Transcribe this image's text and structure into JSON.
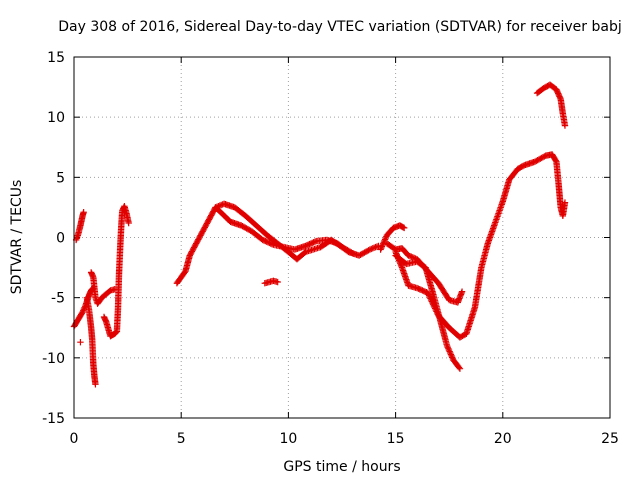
{
  "chart_data": {
    "type": "scatter",
    "title": "Day 308 of 2016, Sidereal Day-to-day VTEC variation (SDTVAR) for receiver babj",
    "xlabel": "GPS time / hours",
    "ylabel": "SDTVAR / TECUs",
    "xlim": [
      0,
      25
    ],
    "ylim": [
      -15,
      15
    ],
    "xticks": [
      0,
      5,
      10,
      15,
      20,
      25
    ],
    "yticks": [
      -15,
      -10,
      -5,
      0,
      5,
      10,
      15
    ],
    "grid": true,
    "marker": "+",
    "series_color": "#e00000",
    "series": [
      {
        "name": "seg-a",
        "points": [
          [
            0,
            -7.4
          ],
          [
            0.2,
            -6.8
          ],
          [
            0.4,
            -6.2
          ],
          [
            0.55,
            -5.6
          ],
          [
            0.7,
            -4.8
          ],
          [
            0.8,
            -4.4
          ],
          [
            0.9,
            -4.2
          ]
        ]
      },
      {
        "name": "seg-b",
        "points": [
          [
            0.1,
            -0.2
          ],
          [
            0.2,
            0.3
          ],
          [
            0.3,
            1.0
          ],
          [
            0.4,
            1.8
          ],
          [
            0.45,
            2.1
          ]
        ]
      },
      {
        "name": "seg-c",
        "points": [
          [
            0.8,
            -2.9
          ],
          [
            0.9,
            -3.3
          ],
          [
            1.0,
            -5.0
          ],
          [
            1.1,
            -5.5
          ],
          [
            1.3,
            -5.0
          ],
          [
            1.5,
            -4.7
          ],
          [
            1.7,
            -4.4
          ],
          [
            1.9,
            -4.3
          ]
        ]
      },
      {
        "name": "seg-d",
        "points": [
          [
            0.6,
            -5.0
          ],
          [
            0.7,
            -6.0
          ],
          [
            0.8,
            -7.5
          ],
          [
            0.85,
            -8.5
          ],
          [
            0.9,
            -10.5
          ],
          [
            0.95,
            -11.5
          ],
          [
            1.0,
            -12.2
          ]
        ]
      },
      {
        "name": "seg-e",
        "points": [
          [
            1.4,
            -6.6
          ],
          [
            1.5,
            -7.0
          ],
          [
            1.6,
            -7.6
          ],
          [
            1.7,
            -8.2
          ],
          [
            1.9,
            -8.0
          ],
          [
            2.0,
            -7.8
          ],
          [
            2.05,
            -6.0
          ],
          [
            2.1,
            -3.0
          ],
          [
            2.15,
            -1.0
          ],
          [
            2.2,
            0.8
          ],
          [
            2.25,
            2.2
          ],
          [
            2.35,
            2.6
          ],
          [
            2.45,
            2.0
          ],
          [
            2.55,
            1.2
          ]
        ]
      },
      {
        "name": "seg-f",
        "points": [
          [
            0.3,
            -8.7
          ]
        ]
      },
      {
        "name": "seg-g",
        "points": [
          [
            4.8,
            -3.8
          ],
          [
            5.0,
            -3.3
          ],
          [
            5.2,
            -2.8
          ],
          [
            5.4,
            -1.5
          ],
          [
            5.7,
            -0.5
          ],
          [
            6.0,
            0.5
          ],
          [
            6.3,
            1.5
          ],
          [
            6.6,
            2.5
          ],
          [
            6.9,
            2.0
          ],
          [
            7.3,
            1.3
          ],
          [
            7.8,
            1.0
          ],
          [
            8.3,
            0.5
          ],
          [
            8.8,
            -0.2
          ],
          [
            9.3,
            -0.6
          ],
          [
            9.8,
            -0.8
          ],
          [
            10.3,
            -1.0
          ],
          [
            10.8,
            -0.7
          ],
          [
            11.3,
            -0.3
          ],
          [
            11.8,
            -0.2
          ],
          [
            12.3,
            -0.5
          ],
          [
            12.8,
            -1.2
          ],
          [
            13.3,
            -1.5
          ],
          [
            13.8,
            -1.0
          ],
          [
            14.2,
            -0.7
          ]
        ]
      },
      {
        "name": "seg-h",
        "points": [
          [
            6.6,
            2.5
          ],
          [
            7.0,
            2.8
          ],
          [
            7.5,
            2.5
          ],
          [
            8.0,
            1.8
          ],
          [
            8.5,
            1.0
          ],
          [
            9.0,
            0.2
          ],
          [
            9.5,
            -0.5
          ],
          [
            10.0,
            -1.2
          ],
          [
            10.4,
            -1.8
          ],
          [
            10.8,
            -1.2
          ],
          [
            11.5,
            -0.8
          ],
          [
            12.0,
            -0.2
          ],
          [
            12.5,
            -0.8
          ],
          [
            13.0,
            -1.3
          ]
        ]
      },
      {
        "name": "seg-i",
        "points": [
          [
            8.9,
            -3.8
          ],
          [
            9.1,
            -3.7
          ],
          [
            9.3,
            -3.6
          ],
          [
            9.5,
            -3.7
          ]
        ]
      },
      {
        "name": "seg-j",
        "points": [
          [
            14.3,
            -1.0
          ],
          [
            14.6,
            0.2
          ],
          [
            14.9,
            0.8
          ],
          [
            15.2,
            1.0
          ],
          [
            15.4,
            0.8
          ]
        ]
      },
      {
        "name": "seg-k",
        "points": [
          [
            14.6,
            -0.5
          ],
          [
            15.0,
            -1.0
          ],
          [
            15.3,
            -0.9
          ],
          [
            15.6,
            -1.5
          ],
          [
            16.0,
            -1.8
          ],
          [
            16.5,
            -2.8
          ],
          [
            17.0,
            -3.8
          ],
          [
            17.5,
            -5.2
          ],
          [
            17.9,
            -5.4
          ],
          [
            18.1,
            -4.5
          ]
        ]
      },
      {
        "name": "seg-l",
        "points": [
          [
            15.0,
            -1.2
          ],
          [
            15.3,
            -2.5
          ],
          [
            15.6,
            -4.0
          ],
          [
            16.0,
            -4.2
          ],
          [
            16.5,
            -4.6
          ],
          [
            17.0,
            -6.5
          ],
          [
            17.5,
            -7.5
          ],
          [
            18.0,
            -8.3
          ],
          [
            18.3,
            -8.0
          ],
          [
            18.7,
            -5.8
          ],
          [
            19.0,
            -2.5
          ],
          [
            19.3,
            -0.5
          ],
          [
            19.7,
            1.5
          ],
          [
            20.0,
            3.0
          ],
          [
            20.3,
            4.8
          ],
          [
            20.7,
            5.7
          ],
          [
            21.0,
            6.0
          ],
          [
            21.5,
            6.3
          ],
          [
            22.0,
            6.8
          ],
          [
            22.3,
            6.9
          ],
          [
            22.5,
            6.3
          ],
          [
            22.6,
            4.5
          ],
          [
            22.7,
            2.5
          ],
          [
            22.8,
            1.8
          ],
          [
            22.9,
            2.9
          ]
        ]
      },
      {
        "name": "seg-m",
        "points": [
          [
            15.0,
            -1.5
          ],
          [
            15.5,
            -2.2
          ],
          [
            16.0,
            -2.0
          ],
          [
            16.4,
            -2.5
          ],
          [
            16.8,
            -5.0
          ],
          [
            17.1,
            -7.0
          ],
          [
            17.4,
            -9.0
          ],
          [
            17.7,
            -10.2
          ],
          [
            18.0,
            -10.9
          ]
        ]
      },
      {
        "name": "seg-n",
        "points": [
          [
            21.6,
            12.0
          ],
          [
            21.9,
            12.4
          ],
          [
            22.2,
            12.7
          ],
          [
            22.5,
            12.3
          ],
          [
            22.7,
            11.5
          ],
          [
            22.8,
            10.3
          ],
          [
            22.9,
            9.3
          ]
        ]
      }
    ]
  }
}
